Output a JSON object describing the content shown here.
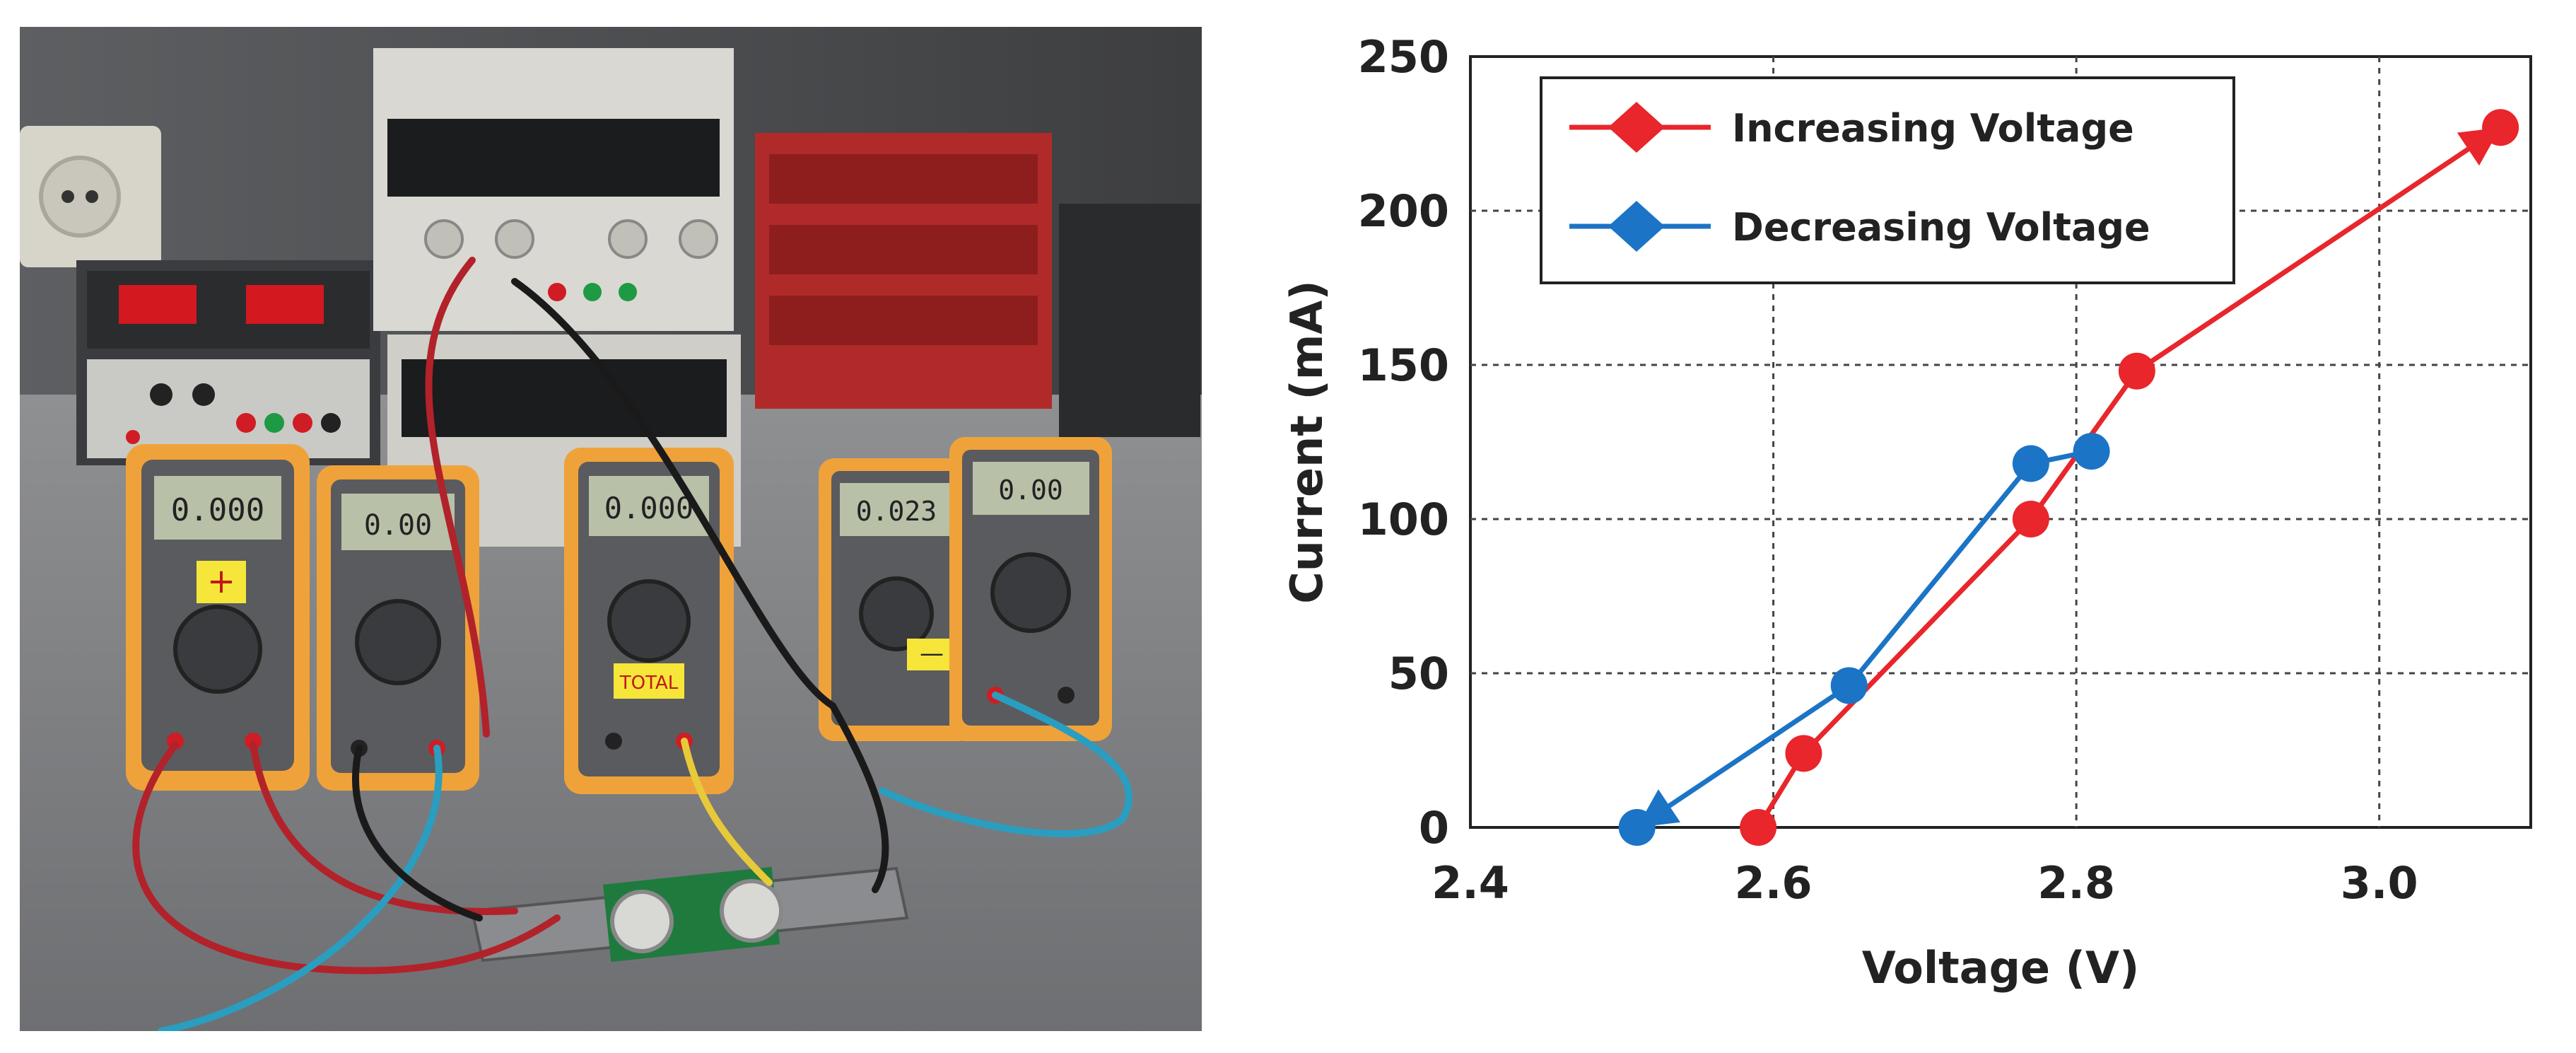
{
  "photo": {
    "meter_labels": {
      "plus": "+",
      "total": "TOTAL",
      "minus": "—"
    },
    "meter_readings": [
      "0.000",
      "0.00",
      "0.000",
      "0.023",
      "0.00"
    ]
  },
  "chart_data": {
    "type": "line",
    "xlabel": "Voltage (V)",
    "ylabel": "Current (mA)",
    "xlim": [
      2.4,
      3.1
    ],
    "ylim": [
      0,
      250
    ],
    "x_ticks": [
      2.4,
      2.6,
      2.8,
      3.0
    ],
    "x_tick_labels": [
      "2.4",
      "2.6",
      "2.8",
      "3.0"
    ],
    "y_ticks": [
      0,
      50,
      100,
      150,
      200,
      250
    ],
    "y_tick_labels": [
      "0",
      "50",
      "100",
      "150",
      "200",
      "250"
    ],
    "grid": true,
    "legend_position": "top-left",
    "series": [
      {
        "name": "Increasing Voltage",
        "color": "#e8262b",
        "x": [
          2.59,
          2.62,
          2.77,
          2.84,
          3.08
        ],
        "y": [
          0,
          24,
          100,
          148,
          227
        ]
      },
      {
        "name": "Decreasing Voltage",
        "color": "#1b74c5",
        "x": [
          2.81,
          2.77,
          2.65,
          2.51
        ],
        "y": [
          122,
          118,
          46,
          0
        ]
      }
    ]
  }
}
